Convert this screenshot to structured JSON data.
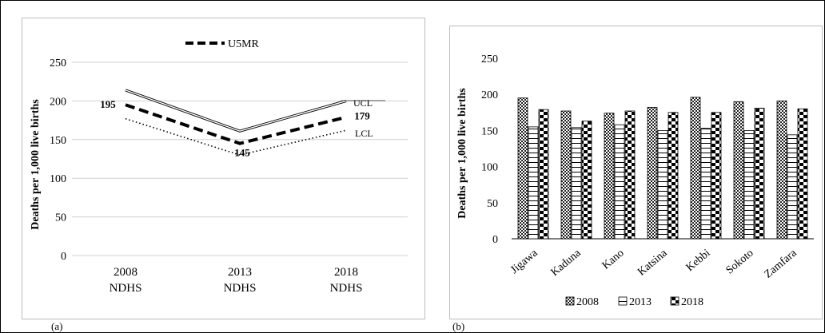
{
  "panels": [
    {
      "tag": "(a)"
    },
    {
      "tag": "(b)"
    }
  ],
  "chart_data": [
    {
      "type": "line",
      "title": "",
      "ylabel": "Deaths per 1,000 live births",
      "xlabel": "",
      "x": [
        "2008 NDHS",
        "2013 NDHS",
        "2018 NDHS"
      ],
      "x_lines": [
        [
          "2008",
          "NDHS"
        ],
        [
          "2013",
          "NDHS"
        ],
        [
          "2018",
          "NDHS"
        ]
      ],
      "ylim": [
        0,
        250
      ],
      "yticks": [
        "0",
        "50",
        "100",
        "150",
        "200",
        "250"
      ],
      "grid": true,
      "legend": {
        "position": "top",
        "entries": [
          "U5MR"
        ]
      },
      "series": [
        {
          "name": "U5MR",
          "values": [
            195,
            145,
            179
          ],
          "style": "dashed-bold",
          "data_labels": [
            "195",
            "145",
            "179"
          ]
        },
        {
          "name": "UCL",
          "values": [
            214,
            161,
            200
          ],
          "style": "double-line"
        },
        {
          "name": "LCL",
          "values": [
            177,
            130,
            162
          ],
          "style": "dotted"
        }
      ],
      "annotations": [
        "UCL",
        "LCL"
      ]
    },
    {
      "type": "bar",
      "title": "",
      "ylabel": "Deaths per 1,000 live births",
      "xlabel": "",
      "categories": [
        "Jigawa",
        "Kaduna",
        "Kano",
        "Katsina",
        "Kebbi",
        "Sokoto",
        "Zamfara"
      ],
      "ylim": [
        0,
        250
      ],
      "yticks": [
        "0",
        "50",
        "100",
        "150",
        "200",
        "250"
      ],
      "grid": false,
      "legend": {
        "position": "bottom"
      },
      "series": [
        {
          "name": "2008",
          "values": [
            195,
            177,
            174,
            182,
            196,
            190,
            191
          ],
          "pattern": "checker"
        },
        {
          "name": "2013",
          "values": [
            155,
            154,
            158,
            150,
            153,
            150,
            144
          ],
          "pattern": "horizontal-lines"
        },
        {
          "name": "2018",
          "values": [
            179,
            163,
            177,
            175,
            175,
            181,
            180
          ],
          "pattern": "brick"
        }
      ]
    }
  ]
}
